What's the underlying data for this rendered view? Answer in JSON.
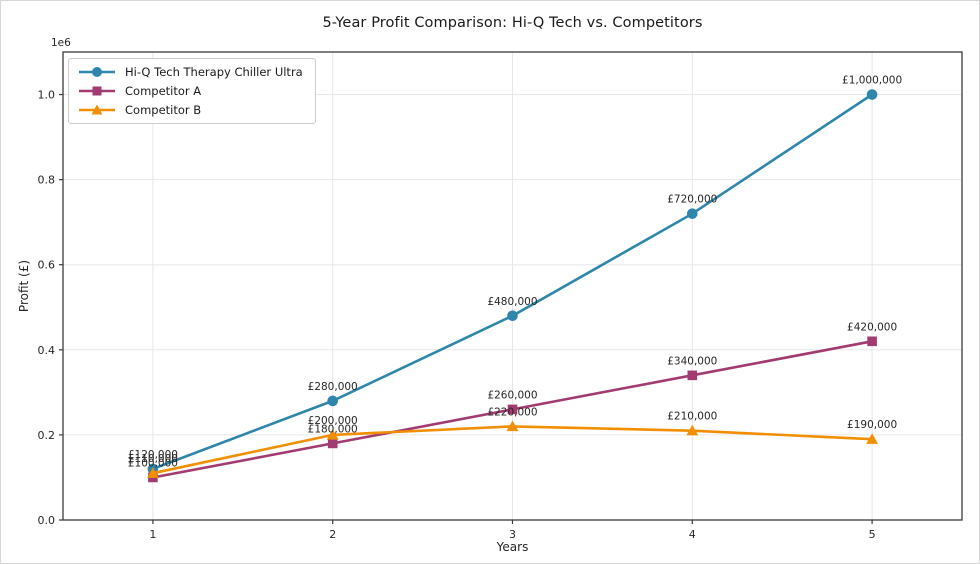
{
  "chart_data": {
    "type": "line",
    "title": "5-Year Profit Comparison: Hi-Q Tech vs. Competitors",
    "xlabel": "Years",
    "ylabel": "Profit (£)",
    "y_offset_label": "1e6",
    "grid": true,
    "legend_position": "upper left",
    "x": [
      1,
      2,
      3,
      4,
      5
    ],
    "xlim": [
      0.5,
      5.5
    ],
    "ylim": [
      0,
      1100000
    ],
    "xticks": [
      {
        "value": 1,
        "label": "1"
      },
      {
        "value": 2,
        "label": "2"
      },
      {
        "value": 3,
        "label": "3"
      },
      {
        "value": 4,
        "label": "4"
      },
      {
        "value": 5,
        "label": "5"
      }
    ],
    "yticks": [
      {
        "value": 0,
        "label": "0.0"
      },
      {
        "value": 200000,
        "label": "0.2"
      },
      {
        "value": 400000,
        "label": "0.4"
      },
      {
        "value": 600000,
        "label": "0.6"
      },
      {
        "value": 800000,
        "label": "0.8"
      },
      {
        "value": 1000000,
        "label": "1.0"
      }
    ],
    "series": [
      {
        "name": "Hi-Q Tech Therapy Chiller Ultra",
        "color": "#2E86AB",
        "marker": "circle",
        "values": [
          120000,
          280000,
          480000,
          720000,
          1000000
        ],
        "point_labels": [
          "£120,000",
          "£280,000",
          "£480,000",
          "£720,000",
          "£1,000,000"
        ]
      },
      {
        "name": "Competitor A",
        "color": "#A23B72",
        "marker": "square",
        "values": [
          100000,
          180000,
          260000,
          340000,
          420000
        ],
        "point_labels": [
          "£100,000",
          "£180,000",
          "£260,000",
          "£340,000",
          "£420,000"
        ]
      },
      {
        "name": "Competitor B",
        "color": "#F18F01",
        "marker": "triangle",
        "values": [
          110000,
          200000,
          220000,
          210000,
          190000
        ],
        "point_labels": [
          "£110,000",
          "£200,000",
          "£220,000",
          "£210,000",
          "£190,000"
        ]
      }
    ],
    "colors": {
      "grid": "#e7e7e7",
      "spine": "#3a3a3a",
      "text": "#262626"
    }
  }
}
